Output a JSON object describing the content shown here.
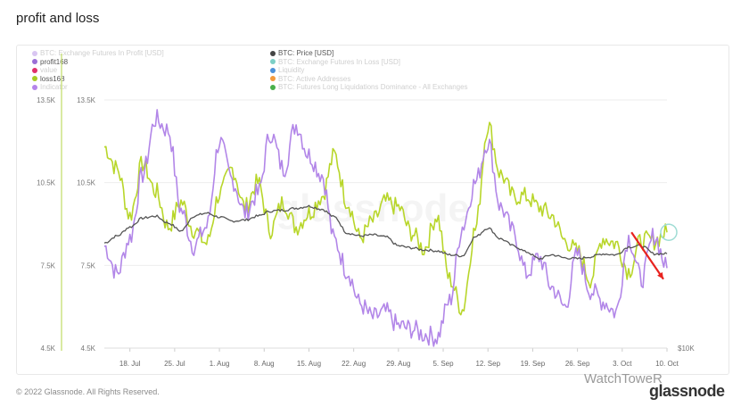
{
  "page": {
    "title": "profit and loss",
    "footer": "© 2022 Glassnode. All Rights Reserved.",
    "watermark": "WatchToweR",
    "brand": "glassnode",
    "chart_watermark": "glassnode"
  },
  "legend": {
    "left": [
      {
        "label": "BTC: Exchange Futures In Profit [USD]",
        "color": "#d9c6f2",
        "faded": true
      },
      {
        "label": "profit168",
        "color": "#9b6fd6",
        "faded": false
      },
      {
        "label": "value",
        "color": "#e0306a",
        "faded": true
      },
      {
        "label": "loss168",
        "color": "#a6cc24",
        "faded": false
      },
      {
        "label": "Indicator",
        "color": "#b585ea",
        "faded": true
      }
    ],
    "middle": [
      {
        "label": "BTC: Price [USD]",
        "color": "#444444",
        "faded": false
      },
      {
        "label": "BTC: Exchange Futures In Loss [USD]",
        "color": "#7ccfc6",
        "faded": true
      },
      {
        "label": "Liquidity",
        "color": "#4a90d9",
        "faded": true
      },
      {
        "label": "BTC: Active Addresses",
        "color": "#f39a3c",
        "faded": true
      },
      {
        "label": "BTC: Futures Long Liquidations Dominance - All Exchanges",
        "color": "#49b04a",
        "faded": true
      }
    ]
  },
  "colors": {
    "profit": "#b286e8",
    "loss": "#b8d62a",
    "price": "#555555",
    "arrow": "#e8231f",
    "circle": "#9fdcd4",
    "grid": "#eeeeee"
  },
  "chart_data": {
    "type": "line",
    "x": [
      "2022-07-14",
      "2022-07-16",
      "2022-07-18",
      "2022-07-20",
      "2022-07-22",
      "2022-07-24",
      "2022-07-26",
      "2022-07-28",
      "2022-07-30",
      "2022-08-01",
      "2022-08-03",
      "2022-08-05",
      "2022-08-07",
      "2022-08-09",
      "2022-08-11",
      "2022-08-13",
      "2022-08-15",
      "2022-08-17",
      "2022-08-19",
      "2022-08-21",
      "2022-08-23",
      "2022-08-25",
      "2022-08-27",
      "2022-08-29",
      "2022-08-31",
      "2022-09-02",
      "2022-09-04",
      "2022-09-06",
      "2022-09-08",
      "2022-09-10",
      "2022-09-12",
      "2022-09-14",
      "2022-09-16",
      "2022-09-18",
      "2022-09-20",
      "2022-09-22",
      "2022-09-24",
      "2022-09-26",
      "2022-09-28",
      "2022-09-30",
      "2022-10-02",
      "2022-10-04",
      "2022-10-06",
      "2022-10-08",
      "2022-10-10"
    ],
    "x_ticks": [
      "18. Jul",
      "25. Jul",
      "1. Aug",
      "8. Aug",
      "15. Aug",
      "22. Aug",
      "29. Aug",
      "5. Sep",
      "12. Sep",
      "19. Sep",
      "26. Sep",
      "3. Oct",
      "10. Oct"
    ],
    "y_left_ticks": [
      "4.5K",
      "7.5K",
      "10.5K",
      "13.5K"
    ],
    "y_inner_ticks": [
      "4.5K",
      "7.5K",
      "10.5K",
      "13.5K"
    ],
    "y_right_ticks": [
      "$10K"
    ],
    "ylim": [
      4500,
      13500
    ],
    "series": [
      {
        "name": "profit168",
        "axis": "left",
        "values": [
          8200,
          7200,
          8500,
          10800,
          12800,
          12400,
          9500,
          8200,
          8900,
          12000,
          10600,
          9400,
          10100,
          12300,
          11000,
          12600,
          11500,
          10800,
          8400,
          7300,
          6100,
          5600,
          5800,
          5300,
          5200,
          5000,
          4900,
          6200,
          8900,
          10500,
          12000,
          9600,
          8700,
          7200,
          7800,
          6700,
          6000,
          7900,
          6600,
          6200,
          5800,
          8500,
          7000,
          8600,
          7400
        ]
      },
      {
        "name": "loss168",
        "axis": "left",
        "values": [
          11800,
          11000,
          9300,
          11200,
          10200,
          8900,
          9800,
          8800,
          8300,
          10100,
          11000,
          9600,
          10500,
          8800,
          9800,
          8900,
          9400,
          10000,
          11500,
          9800,
          8500,
          9100,
          9800,
          9600,
          8700,
          8100,
          9300,
          7000,
          5900,
          8800,
          12600,
          10800,
          10000,
          10000,
          9600,
          9300,
          8400,
          8000,
          7000,
          8500,
          8300,
          7300,
          8400,
          8400,
          8700
        ]
      },
      {
        "name": "BTC: Price [USD]",
        "axis": "right",
        "values": [
          20600,
          21300,
          22200,
          23100,
          23300,
          22600,
          21800,
          23300,
          23600,
          23200,
          22800,
          22900,
          23300,
          23800,
          23900,
          24100,
          24300,
          24000,
          23200,
          21600,
          21300,
          21400,
          21200,
          20300,
          20100,
          19900,
          19800,
          19400,
          19300,
          21200,
          22100,
          21000,
          20300,
          19700,
          19000,
          19400,
          19100,
          19000,
          19200,
          19500,
          19400,
          20200,
          20300,
          19500,
          19500
        ]
      }
    ],
    "annotations": [
      "red arrow pointing down over the profit168 line near 3-10 Oct",
      "circle highlighting the loss168 line near 10 Oct"
    ]
  }
}
